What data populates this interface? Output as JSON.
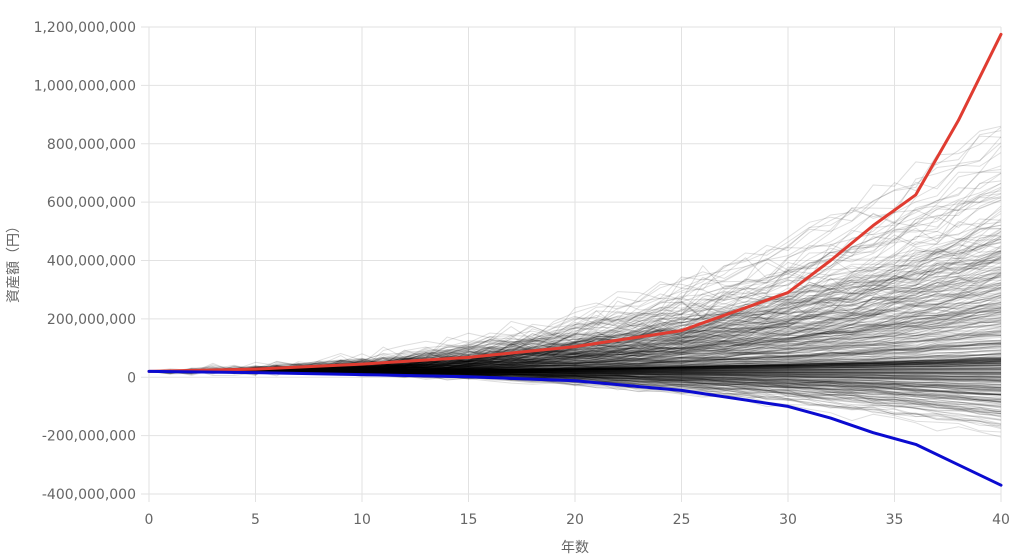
{
  "chart_data": {
    "type": "line",
    "xlabel": "年数",
    "ylabel": "資産額（円）",
    "xlim": [
      0,
      40
    ],
    "ylim": [
      -400000000,
      1200000000
    ],
    "x_ticks": [
      "0",
      "5",
      "10",
      "15",
      "20",
      "25",
      "30",
      "35",
      "40"
    ],
    "y_ticks": [
      "1,200,000,000",
      "1,000,000,000",
      "800,000,000",
      "600,000,000",
      "400,000,000",
      "200,000,000",
      "0",
      "-200,000,000",
      "-400,000,000"
    ],
    "grid": true,
    "legend": "none",
    "x": [
      0,
      5,
      10,
      15,
      20,
      25,
      30,
      32,
      34,
      36,
      38,
      40
    ],
    "series": [
      {
        "color": "#e03c31",
        "values": [
          20000000,
          28000000,
          45000000,
          68000000,
          105000000,
          160000000,
          290000000,
          400000000,
          520000000,
          625000000,
          880000000,
          1175000000
        ]
      },
      {
        "color": "#0b0bd0",
        "values": [
          20000000,
          16000000,
          9000000,
          2000000,
          -12000000,
          -45000000,
          -100000000,
          -140000000,
          -190000000,
          -230000000,
          -300000000,
          -370000000
        ]
      }
    ],
    "simulation_lines": {
      "color": "#000000",
      "count": 500,
      "start_value": 20000000,
      "approx_final_range": [
        -270000000,
        860000000
      ]
    }
  }
}
